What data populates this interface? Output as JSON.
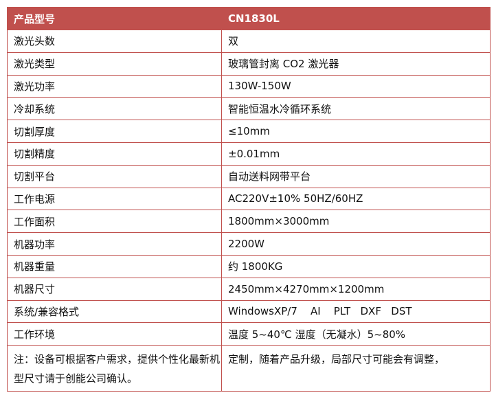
{
  "header": {
    "label": "产品型号",
    "value": "CN1830L"
  },
  "rows": [
    {
      "label": "激光头数",
      "value": "双"
    },
    {
      "label": "激光类型",
      "value": "玻璃管封离 CO2 激光器"
    },
    {
      "label": "激光功率",
      "value": "130W-150W"
    },
    {
      "label": "冷却系统",
      "value": "智能恒温水冷循环系统"
    },
    {
      "label": "切割厚度",
      "value": "≤10mm"
    },
    {
      "label": "切割精度",
      "value": "±0.01mm"
    },
    {
      "label": "切割平台",
      "value": "自动送料网带平台"
    },
    {
      "label": "工作电源",
      "value": "AC220V±10% 50HZ/60HZ"
    },
    {
      "label": "工作面积",
      "value": "1800mm×3000mm"
    },
    {
      "label": "机器功率",
      "value": "2200W"
    },
    {
      "label": "机器重量",
      "value": "约 1800KG"
    },
    {
      "label": "机器尺寸",
      "value": "2450mm×4270mm×1200mm"
    },
    {
      "label": "系统/兼容格式",
      "value": "WindowsXP/7    AI    PLT   DXF   DST"
    },
    {
      "label": "工作环境",
      "value": "温度 5~40℃ 湿度（无凝水）5~80%"
    }
  ],
  "note": {
    "left": "注：设备可根据客户需求，提供个性化最新机型尺寸请于创能公司确认。",
    "right": "定制，随着产品升级，局部尺寸可能会有调整，"
  },
  "colors": {
    "accent": "#c0504d"
  }
}
